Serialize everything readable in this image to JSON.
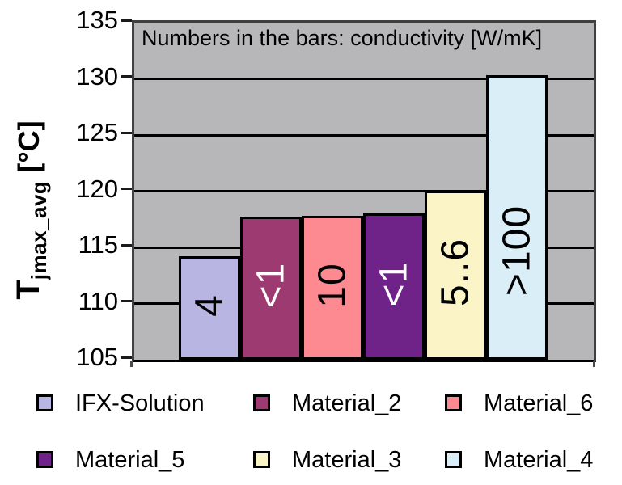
{
  "chart_data": {
    "type": "bar",
    "note": "Numbers in the bars: conductivity [W/mK]",
    "ylabel_main": "T",
    "ylabel_sub": "jmax_avg",
    "ylabel_unit": " [°C]",
    "ylim": [
      105,
      135
    ],
    "yticks": [
      105,
      110,
      115,
      120,
      125,
      130,
      135
    ],
    "grid": true,
    "legend_position": "bottom",
    "plot_background": "#b7b6b9",
    "series": [
      {
        "name": "IFX-Solution",
        "value": 114.2,
        "bar_label": "4",
        "color": "#b9b5e2",
        "label_color": "#000000"
      },
      {
        "name": "Material_2",
        "value": 117.7,
        "bar_label": "<1",
        "color": "#9d3a72",
        "label_color": "#ffffff"
      },
      {
        "name": "Material_6",
        "value": 117.8,
        "bar_label": "10",
        "color": "#fc8a90",
        "label_color": "#000000"
      },
      {
        "name": "Material_5",
        "value": 118.0,
        "bar_label": "<1",
        "color": "#6f2288",
        "label_color": "#ffffff"
      },
      {
        "name": "Material_3",
        "value": 120.0,
        "bar_label": "5..6",
        "color": "#faf4c6",
        "label_color": "#000000"
      },
      {
        "name": "Material_4",
        "value": 130.3,
        "bar_label": ">100",
        "color": "#daeef8",
        "label_color": "#000000"
      }
    ],
    "legend_rows": [
      [
        0,
        1,
        2
      ],
      [
        3,
        4,
        5
      ]
    ]
  }
}
